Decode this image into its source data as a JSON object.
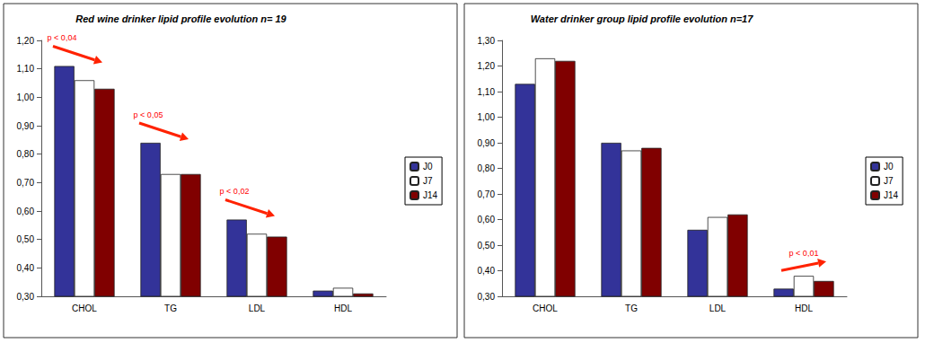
{
  "chart_data": [
    {
      "type": "bar",
      "title": "Red wine drinker lipid profile evolution n= 19",
      "categories": [
        "CHOL",
        "TG",
        "LDL",
        "HDL"
      ],
      "series": [
        {
          "name": "J0",
          "color": "#333399",
          "values": [
            1.11,
            0.84,
            0.57,
            0.32
          ]
        },
        {
          "name": "J7",
          "color": "#ffffff",
          "values": [
            1.06,
            0.73,
            0.52,
            0.33
          ]
        },
        {
          "name": "J14",
          "color": "#800000",
          "values": [
            1.03,
            0.73,
            0.51,
            0.31
          ]
        }
      ],
      "ylim": [
        0.3,
        1.2
      ],
      "yticks": [
        {
          "value": 0.3,
          "label": "0,30"
        },
        {
          "value": 0.4,
          "label": "0,40"
        },
        {
          "value": 0.5,
          "label": "0,50"
        },
        {
          "value": 0.6,
          "label": "0,60"
        },
        {
          "value": 0.7,
          "label": "0,70"
        },
        {
          "value": 0.8,
          "label": "0,80"
        },
        {
          "value": 0.9,
          "label": "0,90"
        },
        {
          "value": 1.0,
          "label": "1,00"
        },
        {
          "value": 1.1,
          "label": "1,10"
        },
        {
          "value": 1.2,
          "label": "1,20"
        }
      ],
      "annotations": [
        {
          "text": "p < 0,04",
          "category": "CHOL"
        },
        {
          "text": "p < 0,05",
          "category": "TG"
        },
        {
          "text": "p < 0,02",
          "category": "LDL"
        }
      ],
      "grid": false,
      "legend": "right"
    },
    {
      "type": "bar",
      "title": "Water drinker group lipid profile evolution n=17",
      "categories": [
        "CHOL",
        "TG",
        "LDL",
        "HDL"
      ],
      "series": [
        {
          "name": "J0",
          "color": "#333399",
          "values": [
            1.13,
            0.9,
            0.56,
            0.33
          ]
        },
        {
          "name": "J7",
          "color": "#ffffff",
          "values": [
            1.23,
            0.87,
            0.61,
            0.38
          ]
        },
        {
          "name": "J14",
          "color": "#800000",
          "values": [
            1.22,
            0.88,
            0.62,
            0.36
          ]
        }
      ],
      "ylim": [
        0.3,
        1.3
      ],
      "yticks": [
        {
          "value": 0.3,
          "label": "0,30"
        },
        {
          "value": 0.4,
          "label": "0,40"
        },
        {
          "value": 0.5,
          "label": "0,50"
        },
        {
          "value": 0.6,
          "label": "0,60"
        },
        {
          "value": 0.7,
          "label": "0,70"
        },
        {
          "value": 0.8,
          "label": "0,80"
        },
        {
          "value": 0.9,
          "label": "0,90"
        },
        {
          "value": 1.0,
          "label": "1,00"
        },
        {
          "value": 1.1,
          "label": "1,10"
        },
        {
          "value": 1.2,
          "label": "1,20"
        },
        {
          "value": 1.3,
          "label": "1,30"
        }
      ],
      "annotations": [
        {
          "text": "p < 0,01",
          "category": "HDL"
        }
      ],
      "grid": false,
      "legend": "right"
    }
  ]
}
